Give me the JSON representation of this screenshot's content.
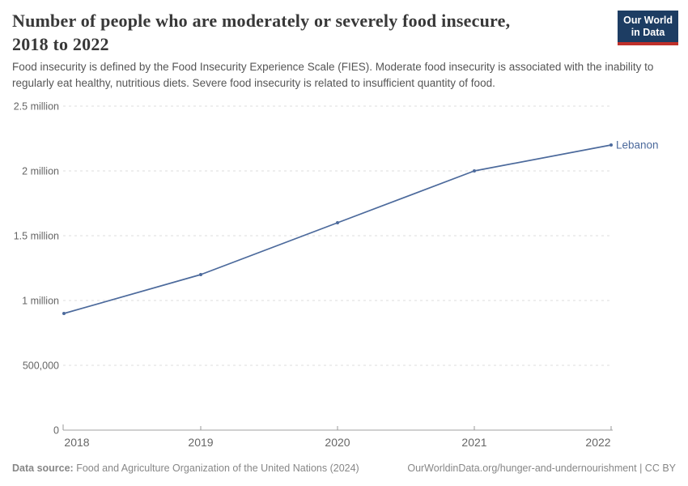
{
  "header": {
    "title_lines": [
      "Number of people who are moderately or severely food insecure,",
      "2018 to 2022"
    ],
    "subtitle": "Food insecurity is defined by the Food Insecurity Experience Scale (FIES). Moderate food insecurity is associated with the inability to regularly eat healthy, nutritious diets. Severe food insecurity is related to insufficient quantity of food.",
    "logo": {
      "line1": "Our World",
      "line2": "in Data",
      "bg": "#1d3d63",
      "accent": "#c0302a"
    }
  },
  "chart_data": {
    "type": "line",
    "title": "Number of people who are moderately or severely food insecure, 2018 to 2022",
    "x": [
      2018,
      2019,
      2020,
      2021,
      2022
    ],
    "x_tick_labels": [
      "2018",
      "2019",
      "2020",
      "2021",
      "2022"
    ],
    "series": [
      {
        "name": "Lebanon",
        "values": [
          900000,
          1200000,
          1600000,
          2000000,
          2200000
        ],
        "color": "#4c6a9c"
      }
    ],
    "y_ticks": [
      {
        "value": 0,
        "label": "0"
      },
      {
        "value": 500000,
        "label": "500,000"
      },
      {
        "value": 1000000,
        "label": "1 million"
      },
      {
        "value": 1500000,
        "label": "1.5 million"
      },
      {
        "value": 2000000,
        "label": "2 million"
      },
      {
        "value": 2500000,
        "label": "2.5 million"
      }
    ],
    "ylim": [
      0,
      2500000
    ],
    "grid": "horizontal-dashed",
    "legend_position": "end-of-line-label",
    "end_label": "Lebanon"
  },
  "footer": {
    "source_label": "Data source:",
    "source_text": " Food and Agriculture Organization of the United Nations (2024)",
    "link_text": "OurWorldinData.org/hunger-and-undernourishment | CC BY"
  },
  "colors": {
    "line": "#4c6a9c",
    "grid": "#dcdcdc",
    "axis": "#a0a0a0",
    "tick": "#999999",
    "tick_label": "#666666",
    "title": "#383838"
  }
}
